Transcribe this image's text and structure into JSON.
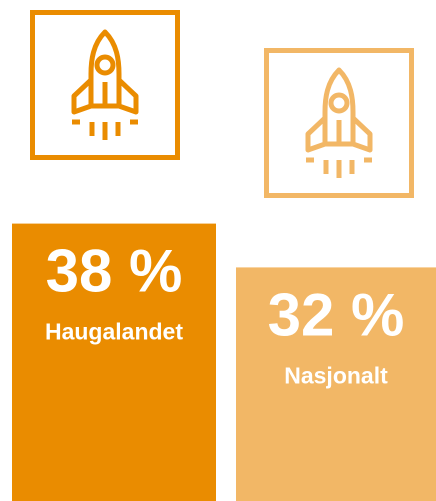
{
  "chart_data": {
    "type": "bar",
    "categories": [
      "Haugalandet",
      "Nasjonalt"
    ],
    "values": [
      38,
      32
    ],
    "value_labels": [
      "38 %",
      "32 %"
    ],
    "colors": [
      "#ea8c00",
      "#f2b766"
    ]
  }
}
